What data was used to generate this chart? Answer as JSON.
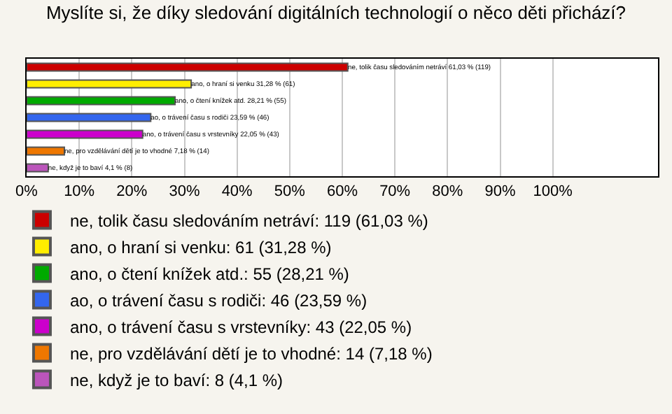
{
  "chart_data": {
    "type": "bar",
    "orientation": "horizontal",
    "title": "Myslíte si, že díky sledování digitálních technologií o něco děti přichází?",
    "categories": [
      null,
      null,
      null,
      null,
      null,
      null,
      null
    ],
    "series": [
      {
        "name": "ne, tolik času sledováním netráví: 119 (61,03 %)",
        "color": "#cc0000",
        "values": [
          61.03,
          null,
          null,
          null,
          null,
          null,
          null
        ],
        "value_labels": [
          "ne, tolik času sledováním netráví 61,03 % (119)",
          null,
          null,
          null,
          null,
          null,
          null
        ]
      },
      {
        "name": "ano, o hraní si venku: 61 (31,28 %)",
        "color": "#ffee00",
        "values": [
          null,
          31.28,
          null,
          null,
          null,
          null,
          null
        ],
        "value_labels": [
          null,
          "ano, o hraní si venku 31,28 % (61)",
          null,
          null,
          null,
          null,
          null
        ]
      },
      {
        "name": "ano, o čtení knížek atd.: 55 (28,21 %)",
        "color": "#00aa00",
        "values": [
          null,
          null,
          28.21,
          null,
          null,
          null,
          null
        ],
        "value_labels": [
          null,
          null,
          "ano, o čtení knížek atd. 28,21 % (55)",
          null,
          null,
          null,
          null
        ]
      },
      {
        "name": "ao, o trávení času s rodiči: 46 (23,59 %)",
        "color": "#3366ee",
        "values": [
          null,
          null,
          null,
          23.59,
          null,
          null,
          null
        ],
        "value_labels": [
          null,
          null,
          null,
          "ao, o trávení času s rodiči 23,59 % (46)",
          null,
          null,
          null
        ]
      },
      {
        "name": "ano, o trávení času s vrstevníky: 43 (22,05 %)",
        "color": "#cc00cc",
        "values": [
          null,
          null,
          null,
          null,
          22.05,
          null,
          null
        ],
        "value_labels": [
          null,
          null,
          null,
          null,
          "ano, o trávení času s vrstevníky 22,05 % (43)",
          null,
          null
        ]
      },
      {
        "name": "ne, pro vzdělávání dětí je to vhodné: 14 (7,18 %)",
        "color": "#ee7700",
        "values": [
          null,
          null,
          null,
          null,
          null,
          7.18,
          null
        ],
        "value_labels": [
          null,
          null,
          null,
          null,
          null,
          "ne, pro vzdělávání dětí je to vhodné 7,18 % (14)",
          null
        ]
      },
      {
        "name": "ne, když je to baví: 8 (4,1 %)",
        "color": "#bb55bb",
        "values": [
          null,
          null,
          null,
          null,
          null,
          null,
          4.1
        ],
        "value_labels": [
          null,
          null,
          null,
          null,
          null,
          null,
          "ne, když je to baví 4,1 % (8)"
        ]
      }
    ],
    "xlim": [
      0,
      120
    ],
    "xticks": [
      {
        "value": 0,
        "label": "0%"
      },
      {
        "value": 10,
        "label": "10%"
      },
      {
        "value": 20,
        "label": "20%"
      },
      {
        "value": 30,
        "label": "30%"
      },
      {
        "value": 40,
        "label": "40%"
      },
      {
        "value": 50,
        "label": "50%"
      },
      {
        "value": 60,
        "label": "60%"
      },
      {
        "value": 70,
        "label": "70%"
      },
      {
        "value": 80,
        "label": "80%"
      },
      {
        "value": 90,
        "label": "90%"
      },
      {
        "value": 100,
        "label": "100%"
      }
    ],
    "grid": "x",
    "legend": "bottom",
    "tick_labels": "x"
  }
}
